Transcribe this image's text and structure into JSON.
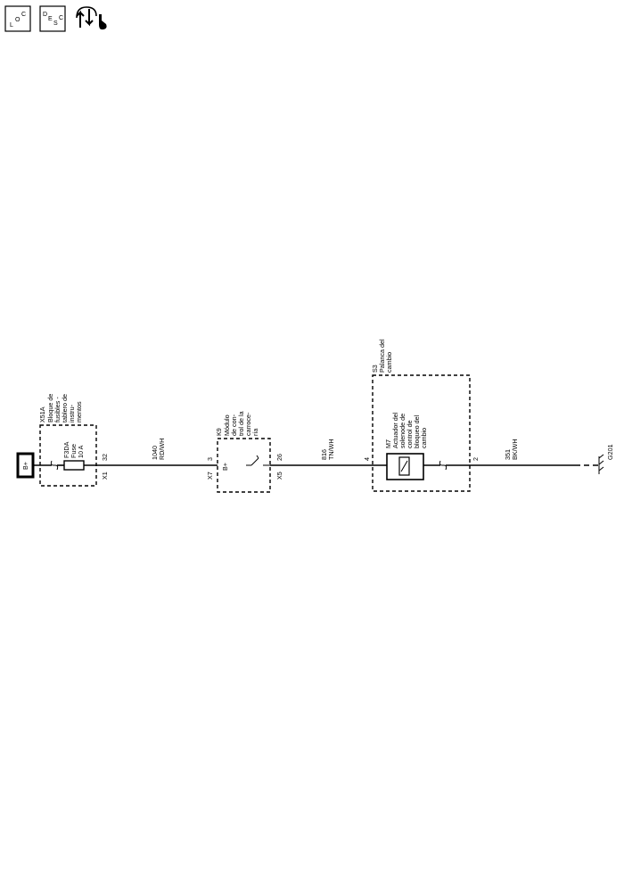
{
  "header_icons": {
    "loc": {
      "l": "L",
      "o": "O",
      "c": "C"
    },
    "desc": {
      "d": "D",
      "e": "E",
      "s": "S",
      "c": "C"
    },
    "service_icon": "service-arrows-wrench-icon"
  },
  "diagram": {
    "power": {
      "label": "B+"
    },
    "fuse_block": {
      "id": "X51A",
      "lines": [
        "Bloque de",
        "fusibles -",
        "tablero de",
        "instru-",
        "mentos"
      ],
      "fuse_lines": [
        "F3DA",
        "Fuse",
        "10 A"
      ],
      "connector": "X1",
      "pin": "32"
    },
    "wire1": {
      "circuit": "1040",
      "color": "RD/WH"
    },
    "bcm": {
      "id": "K9",
      "lines": [
        "Módulo",
        "de con-",
        "trol de la",
        "carroce-",
        "ría"
      ],
      "input_connector": "X7",
      "input_pin": "3",
      "input_label": "B+",
      "output_connector": "X5",
      "output_pin": "26"
    },
    "wire2": {
      "circuit": "816",
      "color": "TN/WH"
    },
    "shifter": {
      "id": "S3",
      "lines": [
        "Palanca del",
        "cambio"
      ],
      "input_pin": "4",
      "output_pin": "2",
      "actuator": {
        "id": "M7",
        "lines": [
          "Actuador del",
          "solenode de",
          "control de",
          "bloqueo del",
          "cambio"
        ]
      }
    },
    "wire3": {
      "circuit": "351",
      "color": "BK/WH"
    },
    "ground": {
      "id": "G201"
    }
  }
}
